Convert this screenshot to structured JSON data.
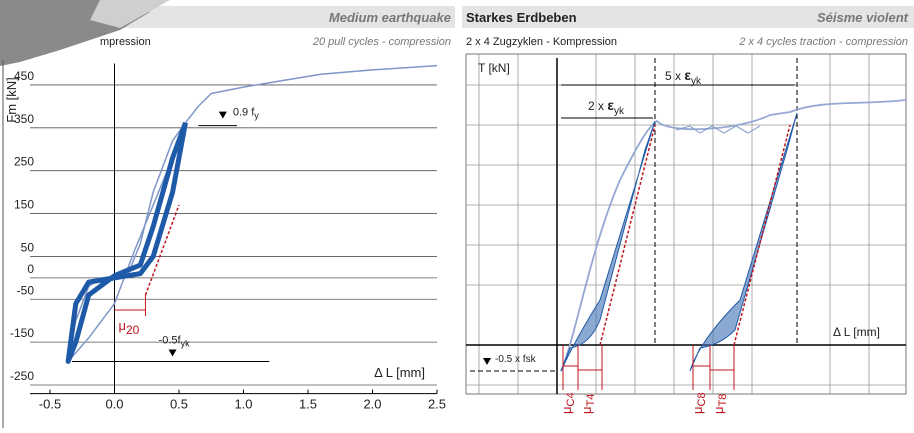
{
  "header": {
    "left_title": "Medium earthquake",
    "left_subtitle_de": "mpression",
    "left_subtitle": "20 pull cycles - compression",
    "right_title": "Starkes Erdbeben",
    "right_title_fr": "Séisme violent",
    "right_subtitle_de": "2 x 4 Zugzyklen - Kompression",
    "right_subtitle": "2 x 4 cycles traction - compression"
  },
  "chart_data": {
    "type": "line",
    "ylabel": "Fm [kN]",
    "xlabel": "Δ L [mm]",
    "xlim": [
      -0.5,
      2.5
    ],
    "ylim": [
      -270,
      500
    ],
    "xticks": [
      -0.5,
      {
        "value": 0,
        "label": "0.0"
      },
      0.5,
      {
        "value": 1,
        "label": "1.0"
      },
      1.5,
      {
        "value": 2,
        "label": "2.0"
      },
      2.5
    ],
    "yticks": [
      450,
      350,
      250,
      150,
      50,
      0,
      -50,
      -150,
      -250
    ],
    "grid": true,
    "series": [
      {
        "color": "#7f96c8",
        "width": 1.5,
        "x": [
          -0.36,
          -0.3,
          -0.2,
          -0.1,
          0.1,
          0.2,
          0.3,
          0.45,
          0.55,
          0.65,
          0.75,
          1.0,
          1.3,
          1.6,
          2.0,
          2.5
        ],
        "y": [
          -195,
          -100,
          -20,
          0,
          5,
          80,
          200,
          320,
          362,
          400,
          430,
          445,
          460,
          475,
          485,
          495
        ]
      },
      {
        "color": "#7f96c8",
        "width": 1.5,
        "x": [
          0.55,
          0.45,
          0.3,
          0.15,
          0,
          -0.2,
          -0.3,
          -0.36
        ],
        "y": [
          362,
          280,
          170,
          60,
          -60,
          -140,
          -175,
          -195
        ]
      },
      {
        "color": "#1f5aa8",
        "width": 5,
        "x": [
          0.55,
          0.45,
          0.3,
          0.2,
          0,
          -0.2,
          -0.3,
          -0.36,
          -0.3,
          -0.2,
          0,
          0.2,
          0.3,
          0.45,
          0.55
        ],
        "y": [
          362,
          200,
          50,
          10,
          0,
          -10,
          -60,
          -195,
          -150,
          -40,
          5,
          30,
          120,
          280,
          362
        ]
      },
      {
        "color": "#c0141c",
        "width": 1.5,
        "dashed": true,
        "x": [
          0.24,
          0.5
        ],
        "y": [
          -40,
          170
        ]
      }
    ],
    "reference_lines": [
      {
        "value": 355,
        "label": "0.9 f",
        "sub": "y"
      },
      {
        "value": -195,
        "label": "-0.5f",
        "sub": "yk"
      }
    ],
    "mu_label": "μ",
    "mu_sub": "20"
  },
  "right_chart": {
    "ylabel": "T [kN]",
    "xlabel": "Δ L [mm]",
    "span5": "5 x ",
    "span2": "2 x ",
    "eps": "ε",
    "eps_sub": "yk",
    "fsk": "-0.5 x fsk",
    "mu": "μ",
    "mu_subs": [
      "C4",
      "T4",
      "C8",
      "T8"
    ]
  }
}
